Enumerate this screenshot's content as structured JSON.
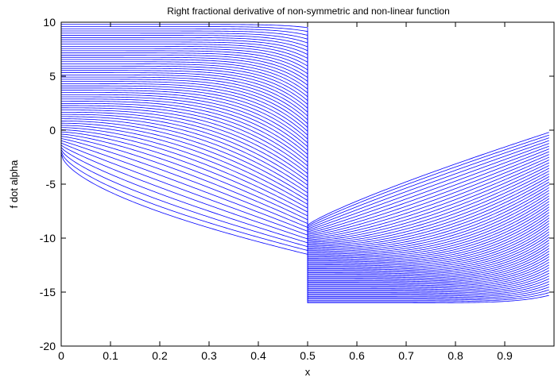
{
  "chart_data": {
    "type": "line",
    "title": "Right fractional derivative of non-symmetric and non-linear function",
    "xlabel": "x",
    "ylabel": "f dot alpha",
    "xlim": [
      0,
      1
    ],
    "ylim": [
      -20,
      10
    ],
    "xticks": [
      0,
      0.1,
      0.2,
      0.3,
      0.4,
      0.5,
      0.6,
      0.7,
      0.8,
      0.9
    ],
    "xtick_labels": [
      "0",
      "0.1",
      "0.2",
      "0.3",
      "0.4",
      "0.5",
      "0.6",
      "0.7",
      "0.8",
      "0.9"
    ],
    "yticks": [
      10,
      5,
      0,
      -5,
      -10,
      -15,
      -20
    ],
    "ytick_labels": [
      "10",
      "5",
      "0",
      "-5",
      "-10",
      "-15",
      "-20"
    ],
    "grid": false,
    "box": true,
    "line_color": "#0000ff",
    "family": {
      "count": 60,
      "discontinuity_x": 0.5,
      "left_segment": {
        "start_y_range": [
          -2.2,
          9.8
        ],
        "end_y_range": [
          -11.5,
          9.5
        ]
      },
      "right_segment": {
        "start_y_range": [
          -8.8,
          -16.0
        ],
        "end_y_range": [
          -0.2,
          -15.3
        ]
      }
    }
  }
}
